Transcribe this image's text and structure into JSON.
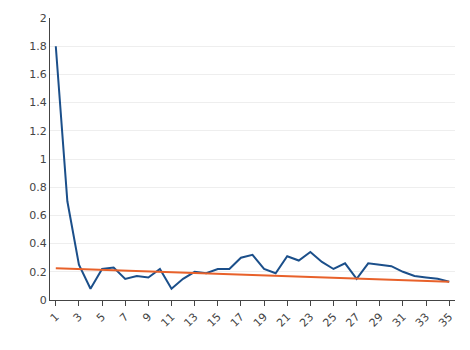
{
  "chart_data": {
    "type": "line",
    "x": [
      1,
      2,
      3,
      4,
      5,
      6,
      7,
      8,
      9,
      10,
      11,
      12,
      13,
      14,
      15,
      16,
      17,
      18,
      19,
      20,
      21,
      22,
      23,
      24,
      25,
      26,
      27,
      28,
      29,
      30,
      31,
      32,
      33,
      34,
      35
    ],
    "series": [
      {
        "color": "#1b4f8a",
        "values": [
          1.8,
          0.7,
          0.25,
          0.08,
          0.22,
          0.23,
          0.15,
          0.17,
          0.16,
          0.22,
          0.08,
          0.15,
          0.2,
          0.19,
          0.22,
          0.22,
          0.3,
          0.32,
          0.22,
          0.19,
          0.31,
          0.28,
          0.34,
          0.27,
          0.22,
          0.26,
          0.15,
          0.26,
          0.25,
          0.24,
          0.2,
          0.17,
          0.16,
          0.15,
          0.13
        ]
      },
      {
        "color": "#e8612a",
        "x": [
          1,
          35
        ],
        "values": [
          0.225,
          0.13
        ]
      }
    ],
    "xlim": [
      0.5,
      35.5
    ],
    "xticks": [
      1,
      3,
      5,
      7,
      9,
      11,
      13,
      15,
      17,
      19,
      21,
      23,
      25,
      27,
      29,
      31,
      33,
      35
    ],
    "ylim": [
      0,
      2.0
    ],
    "yticks": [
      0,
      0.2,
      0.4,
      0.6,
      0.8,
      1,
      1.2,
      1.4,
      1.6,
      1.8,
      2
    ],
    "grid": "y"
  }
}
